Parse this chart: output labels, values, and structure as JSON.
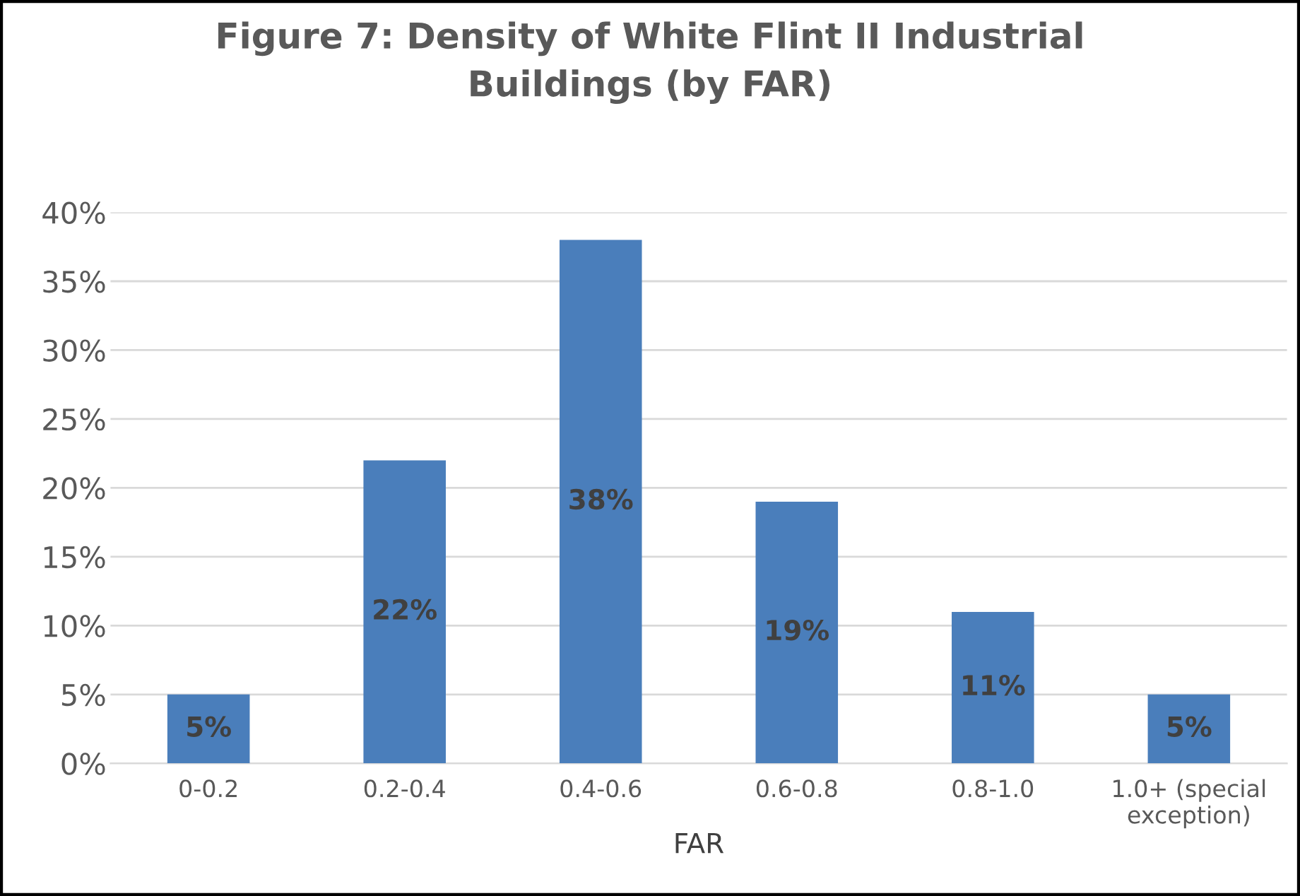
{
  "chart_data": {
    "type": "bar",
    "title": "Figure 7: Density of White Flint II Industrial\nBuildings (by FAR)",
    "xlabel": "FAR",
    "categories": [
      "0-0.2",
      "0.2-0.4",
      "0.4-0.6",
      "0.6-0.8",
      "0.8-1.0",
      "1.0+ (special\nexception)"
    ],
    "values": [
      5,
      22,
      38,
      19,
      11,
      5
    ],
    "color": "#4a7ebb",
    "data_labels": true,
    "value_labels": [
      "5%",
      "22%",
      "38%",
      "19%",
      "11%",
      "5%"
    ],
    "ylim": [
      0,
      40
    ],
    "yticks": [
      {
        "value": 0,
        "label": "0%"
      },
      {
        "value": 5,
        "label": "5%"
      },
      {
        "value": 10,
        "label": "10%"
      },
      {
        "value": 15,
        "label": "15%"
      },
      {
        "value": 20,
        "label": "20%"
      },
      {
        "value": 25,
        "label": "25%"
      },
      {
        "value": 30,
        "label": "30%"
      },
      {
        "value": 35,
        "label": "35%"
      },
      {
        "value": 40,
        "label": "40%"
      }
    ],
    "grid": "y",
    "legend": false
  }
}
